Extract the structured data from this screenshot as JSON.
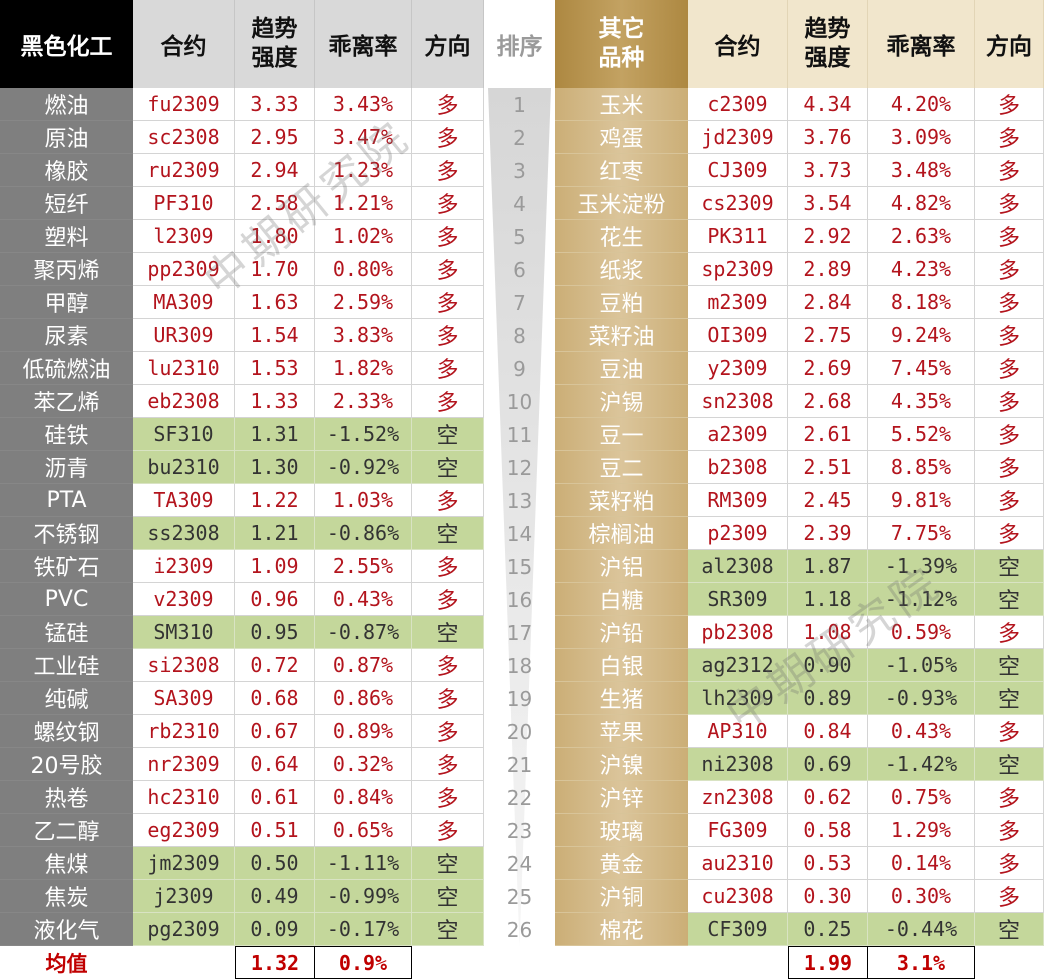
{
  "chart_data": {
    "type": "table",
    "rank": {
      "header": "排序",
      "values": [
        "1",
        "2",
        "3",
        "4",
        "5",
        "6",
        "7",
        "8",
        "9",
        "10",
        "11",
        "12",
        "13",
        "14",
        "15",
        "16",
        "17",
        "18",
        "19",
        "20",
        "21",
        "22",
        "23",
        "24",
        "25",
        "26"
      ]
    },
    "left": {
      "header": {
        "category": "黑色化工",
        "contract": "合约",
        "strength": "趋势\n强度",
        "deviation": "乖离率",
        "direction": "方向"
      },
      "rows": [
        {
          "name": "燃油",
          "contract": "fu2309",
          "strength": "3.33",
          "deviation": "3.43%",
          "direction": "多"
        },
        {
          "name": "原油",
          "contract": "sc2308",
          "strength": "2.95",
          "deviation": "3.47%",
          "direction": "多"
        },
        {
          "name": "橡胶",
          "contract": "ru2309",
          "strength": "2.94",
          "deviation": "1.23%",
          "direction": "多"
        },
        {
          "name": "短纤",
          "contract": "PF310",
          "strength": "2.58",
          "deviation": "1.21%",
          "direction": "多"
        },
        {
          "name": "塑料",
          "contract": "l2309",
          "strength": "1.80",
          "deviation": "1.02%",
          "direction": "多"
        },
        {
          "name": "聚丙烯",
          "contract": "pp2309",
          "strength": "1.70",
          "deviation": "0.80%",
          "direction": "多"
        },
        {
          "name": "甲醇",
          "contract": "MA309",
          "strength": "1.63",
          "deviation": "2.59%",
          "direction": "多"
        },
        {
          "name": "尿素",
          "contract": "UR309",
          "strength": "1.54",
          "deviation": "3.83%",
          "direction": "多"
        },
        {
          "name": "低硫燃油",
          "contract": "lu2310",
          "strength": "1.53",
          "deviation": "1.82%",
          "direction": "多"
        },
        {
          "name": "苯乙烯",
          "contract": "eb2308",
          "strength": "1.33",
          "deviation": "2.33%",
          "direction": "多"
        },
        {
          "name": "硅铁",
          "contract": "SF310",
          "strength": "1.31",
          "deviation": "-1.52%",
          "direction": "空"
        },
        {
          "name": "沥青",
          "contract": "bu2310",
          "strength": "1.30",
          "deviation": "-0.92%",
          "direction": "空"
        },
        {
          "name": "PTA",
          "contract": "TA309",
          "strength": "1.22",
          "deviation": "1.03%",
          "direction": "多"
        },
        {
          "name": "不锈钢",
          "contract": "ss2308",
          "strength": "1.21",
          "deviation": "-0.86%",
          "direction": "空"
        },
        {
          "name": "铁矿石",
          "contract": "i2309",
          "strength": "1.09",
          "deviation": "2.55%",
          "direction": "多"
        },
        {
          "name": "PVC",
          "contract": "v2309",
          "strength": "0.96",
          "deviation": "0.43%",
          "direction": "多"
        },
        {
          "name": "锰硅",
          "contract": "SM310",
          "strength": "0.95",
          "deviation": "-0.87%",
          "direction": "空"
        },
        {
          "name": "工业硅",
          "contract": "si2308",
          "strength": "0.72",
          "deviation": "0.87%",
          "direction": "多"
        },
        {
          "name": "纯碱",
          "contract": "SA309",
          "strength": "0.68",
          "deviation": "0.86%",
          "direction": "多"
        },
        {
          "name": "螺纹钢",
          "contract": "rb2310",
          "strength": "0.67",
          "deviation": "0.89%",
          "direction": "多"
        },
        {
          "name": "20号胶",
          "contract": "nr2309",
          "strength": "0.64",
          "deviation": "0.32%",
          "direction": "多"
        },
        {
          "name": "热卷",
          "contract": "hc2310",
          "strength": "0.61",
          "deviation": "0.84%",
          "direction": "多"
        },
        {
          "name": "乙二醇",
          "contract": "eg2309",
          "strength": "0.51",
          "deviation": "0.65%",
          "direction": "多"
        },
        {
          "name": "焦煤",
          "contract": "jm2309",
          "strength": "0.50",
          "deviation": "-1.11%",
          "direction": "空"
        },
        {
          "name": "焦炭",
          "contract": "j2309",
          "strength": "0.49",
          "deviation": "-0.99%",
          "direction": "空"
        },
        {
          "name": "液化气",
          "contract": "pg2309",
          "strength": "0.09",
          "deviation": "-0.17%",
          "direction": "空"
        }
      ],
      "average": {
        "label": "均值",
        "strength": "1.32",
        "deviation": "0.9%"
      }
    },
    "right": {
      "header": {
        "category": "其它\n品种",
        "contract": "合约",
        "strength": "趋势\n强度",
        "deviation": "乖离率",
        "direction": "方向"
      },
      "rows": [
        {
          "name": "玉米",
          "contract": "c2309",
          "strength": "4.34",
          "deviation": "4.20%",
          "direction": "多"
        },
        {
          "name": "鸡蛋",
          "contract": "jd2309",
          "strength": "3.76",
          "deviation": "3.09%",
          "direction": "多"
        },
        {
          "name": "红枣",
          "contract": "CJ309",
          "strength": "3.73",
          "deviation": "3.48%",
          "direction": "多"
        },
        {
          "name": "玉米淀粉",
          "contract": "cs2309",
          "strength": "3.54",
          "deviation": "4.82%",
          "direction": "多"
        },
        {
          "name": "花生",
          "contract": "PK311",
          "strength": "2.92",
          "deviation": "2.63%",
          "direction": "多"
        },
        {
          "name": "纸浆",
          "contract": "sp2309",
          "strength": "2.89",
          "deviation": "4.23%",
          "direction": "多"
        },
        {
          "name": "豆粕",
          "contract": "m2309",
          "strength": "2.84",
          "deviation": "8.18%",
          "direction": "多"
        },
        {
          "name": "菜籽油",
          "contract": "OI309",
          "strength": "2.75",
          "deviation": "9.24%",
          "direction": "多"
        },
        {
          "name": "豆油",
          "contract": "y2309",
          "strength": "2.69",
          "deviation": "7.45%",
          "direction": "多"
        },
        {
          "name": "沪锡",
          "contract": "sn2308",
          "strength": "2.68",
          "deviation": "4.35%",
          "direction": "多"
        },
        {
          "name": "豆一",
          "contract": "a2309",
          "strength": "2.61",
          "deviation": "5.52%",
          "direction": "多"
        },
        {
          "name": "豆二",
          "contract": "b2308",
          "strength": "2.51",
          "deviation": "8.85%",
          "direction": "多"
        },
        {
          "name": "菜籽粕",
          "contract": "RM309",
          "strength": "2.45",
          "deviation": "9.81%",
          "direction": "多"
        },
        {
          "name": "棕榈油",
          "contract": "p2309",
          "strength": "2.39",
          "deviation": "7.75%",
          "direction": "多"
        },
        {
          "name": "沪铝",
          "contract": "al2308",
          "strength": "1.87",
          "deviation": "-1.39%",
          "direction": "空"
        },
        {
          "name": "白糖",
          "contract": "SR309",
          "strength": "1.18",
          "deviation": "-1.12%",
          "direction": "空"
        },
        {
          "name": "沪铅",
          "contract": "pb2308",
          "strength": "1.08",
          "deviation": "0.59%",
          "direction": "多"
        },
        {
          "name": "白银",
          "contract": "ag2312",
          "strength": "0.90",
          "deviation": "-1.05%",
          "direction": "空"
        },
        {
          "name": "生猪",
          "contract": "lh2309",
          "strength": "0.89",
          "deviation": "-0.93%",
          "direction": "空"
        },
        {
          "name": "苹果",
          "contract": "AP310",
          "strength": "0.84",
          "deviation": "0.43%",
          "direction": "多"
        },
        {
          "name": "沪镍",
          "contract": "ni2308",
          "strength": "0.69",
          "deviation": "-1.42%",
          "direction": "空"
        },
        {
          "name": "沪锌",
          "contract": "zn2308",
          "strength": "0.62",
          "deviation": "0.75%",
          "direction": "多"
        },
        {
          "name": "玻璃",
          "contract": "FG309",
          "strength": "0.58",
          "deviation": "1.29%",
          "direction": "多"
        },
        {
          "name": "黄金",
          "contract": "au2310",
          "strength": "0.53",
          "deviation": "0.14%",
          "direction": "多"
        },
        {
          "name": "沪铜",
          "contract": "cu2308",
          "strength": "0.30",
          "deviation": "0.30%",
          "direction": "多"
        },
        {
          "name": "棉花",
          "contract": "CF309",
          "strength": "0.25",
          "deviation": "-0.44%",
          "direction": "空"
        }
      ],
      "average": {
        "strength": "1.99",
        "deviation": "3.1%"
      }
    }
  },
  "watermark": "中期研究院",
  "colors": {
    "long_text": "#b3141d",
    "short_text": "#333333",
    "short_bg": "#c4d79b",
    "left_cat_header_bg": "#000000",
    "left_cat_body_bg": "#7f7f7f",
    "left_header_bg": "#d9d9d9",
    "right_cat_header_bg": "#c3a262",
    "right_cat_body_bg": "#dbc59b",
    "right_header_bg": "#f1e6cc",
    "rank_text": "#9a9a9a",
    "average_text": "#c00000"
  }
}
